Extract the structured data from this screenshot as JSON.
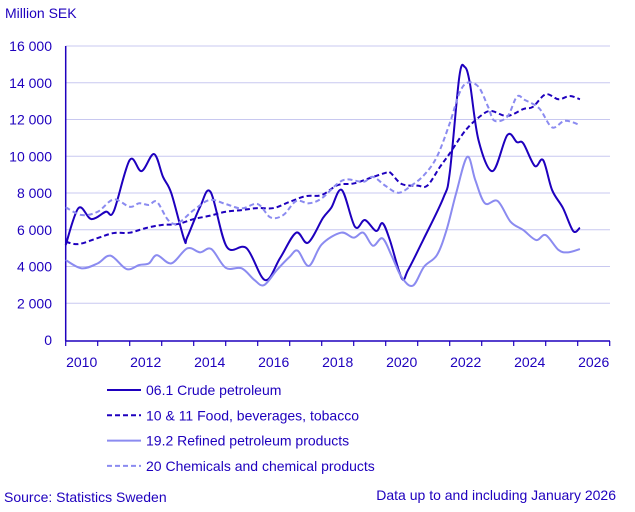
{
  "chart_data": {
    "type": "line",
    "ylabel": "Million SEK",
    "source": "Source: Statistics Sweden",
    "note": "Data up to and including January 2026",
    "xlim": [
      2010,
      2027
    ],
    "ylim": [
      0,
      16000
    ],
    "xticks": [
      "2010",
      "2012",
      "2014",
      "2016",
      "2018",
      "2020",
      "2022",
      "2024",
      "2026"
    ],
    "yticks": [
      "0",
      "2 000",
      "4 000",
      "6 000",
      "8 000",
      "10 000",
      "12 000",
      "14 000",
      "16 000"
    ],
    "grid": true,
    "legend_position": "bottom",
    "colors": {
      "dark": "#1e00be",
      "light": "#8b8bf0",
      "grid": "#c8c8f0",
      "text": "#1e00be"
    },
    "series": [
      {
        "name": "06.1 Crude petroleum",
        "style": "solid",
        "color": "#1e00be",
        "x": [
          2010.0,
          2010.4,
          2010.8,
          2011.25,
          2011.5,
          2012.0,
          2012.37,
          2012.76,
          2013.04,
          2013.3,
          2013.7,
          2013.8,
          2014.2,
          2014.53,
          2015.03,
          2015.65,
          2016.23,
          2016.7,
          2017.2,
          2017.57,
          2018.04,
          2018.3,
          2018.63,
          2019.04,
          2019.35,
          2019.7,
          2019.9,
          2020.13,
          2020.5,
          2020.7,
          2021.17,
          2021.8,
          2022.0,
          2022.3,
          2022.47,
          2022.63,
          2022.9,
          2023.34,
          2023.8,
          2024.1,
          2024.3,
          2024.66,
          2024.92,
          2025.2,
          2025.54,
          2025.86,
          2026.07
        ],
        "y": [
          5170,
          7180,
          6580,
          6980,
          7000,
          9790,
          9190,
          10120,
          8880,
          7990,
          5490,
          5600,
          7250,
          8050,
          5080,
          5000,
          3260,
          4460,
          5840,
          5290,
          6640,
          7200,
          8160,
          6160,
          6530,
          5930,
          6360,
          5440,
          3370,
          3810,
          5440,
          7730,
          9080,
          14320,
          14860,
          13980,
          10880,
          9190,
          11150,
          10770,
          10700,
          9470,
          9790,
          8160,
          7180,
          5930,
          6110
        ]
      },
      {
        "name": "10 & 11 Food, beverages, tobacco",
        "style": "dashed",
        "color": "#1e00be",
        "x": [
          2010.0,
          2010.4,
          2011.0,
          2011.5,
          2012.0,
          2012.5,
          2013.0,
          2013.5,
          2014.0,
          2014.5,
          2015.0,
          2015.5,
          2016.0,
          2016.5,
          2017.0,
          2017.5,
          2018.0,
          2018.5,
          2019.0,
          2019.5,
          2020.0,
          2020.15,
          2020.5,
          2021.0,
          2021.3,
          2021.7,
          2022.0,
          2022.5,
          2023.0,
          2023.3,
          2023.8,
          2024.3,
          2024.6,
          2025.0,
          2025.4,
          2025.75,
          2026.07
        ],
        "y": [
          5350,
          5220,
          5550,
          5820,
          5840,
          6090,
          6260,
          6310,
          6580,
          6760,
          6980,
          7070,
          7180,
          7180,
          7520,
          7830,
          7890,
          8430,
          8520,
          8810,
          9100,
          9100,
          8490,
          8400,
          8400,
          9430,
          10150,
          11420,
          12240,
          12460,
          12190,
          12570,
          12690,
          13370,
          13100,
          13280,
          13100
        ]
      },
      {
        "name": "19.2 Refined petroleum products",
        "style": "solid",
        "color": "#8b8bf0",
        "x": [
          2010.0,
          2010.5,
          2011.0,
          2011.4,
          2011.9,
          2012.3,
          2012.6,
          2012.85,
          2013.3,
          2013.8,
          2014.2,
          2014.55,
          2015.0,
          2015.5,
          2015.9,
          2016.2,
          2016.6,
          2017.0,
          2017.25,
          2017.6,
          2018.0,
          2018.6,
          2019.0,
          2019.3,
          2019.6,
          2019.9,
          2020.2,
          2020.5,
          2020.85,
          2021.2,
          2021.6,
          2021.9,
          2022.2,
          2022.55,
          2022.8,
          2023.1,
          2023.5,
          2023.9,
          2024.3,
          2024.7,
          2025.0,
          2025.4,
          2025.7,
          2026.07
        ],
        "y": [
          4350,
          3900,
          4170,
          4590,
          3860,
          4080,
          4170,
          4620,
          4170,
          4990,
          4770,
          4950,
          3930,
          3900,
          3260,
          2990,
          3810,
          4530,
          4860,
          4030,
          5200,
          5840,
          5570,
          5840,
          5130,
          5530,
          4530,
          3410,
          2960,
          3990,
          4620,
          5980,
          7980,
          9970,
          8700,
          7440,
          7560,
          6440,
          5980,
          5440,
          5710,
          4900,
          4770,
          4950
        ]
      },
      {
        "name": "20 Chemicals and chemical products",
        "style": "dashed",
        "color": "#8b8bf0",
        "x": [
          2010.0,
          2010.5,
          2011.0,
          2011.5,
          2012.0,
          2012.3,
          2012.6,
          2012.85,
          2013.2,
          2013.5,
          2014.0,
          2014.5,
          2015.0,
          2015.5,
          2016.0,
          2016.4,
          2016.8,
          2017.2,
          2017.6,
          2018.0,
          2018.5,
          2018.8,
          2019.3,
          2019.6,
          2020.0,
          2020.4,
          2020.8,
          2021.2,
          2021.6,
          2022.0,
          2022.3,
          2022.55,
          2022.9,
          2023.2,
          2023.4,
          2023.8,
          2024.1,
          2024.35,
          2024.8,
          2025.2,
          2025.6,
          2026.07
        ],
        "y": [
          7220,
          6800,
          6980,
          7650,
          7250,
          7440,
          7350,
          7520,
          6530,
          6350,
          7070,
          7620,
          7400,
          7160,
          7400,
          6670,
          6800,
          7560,
          7440,
          7710,
          8520,
          8740,
          8610,
          8880,
          8380,
          8010,
          8400,
          8980,
          9970,
          11790,
          13420,
          14000,
          13780,
          12690,
          11930,
          12150,
          13240,
          13060,
          12600,
          11570,
          11930,
          11700
        ]
      }
    ]
  }
}
